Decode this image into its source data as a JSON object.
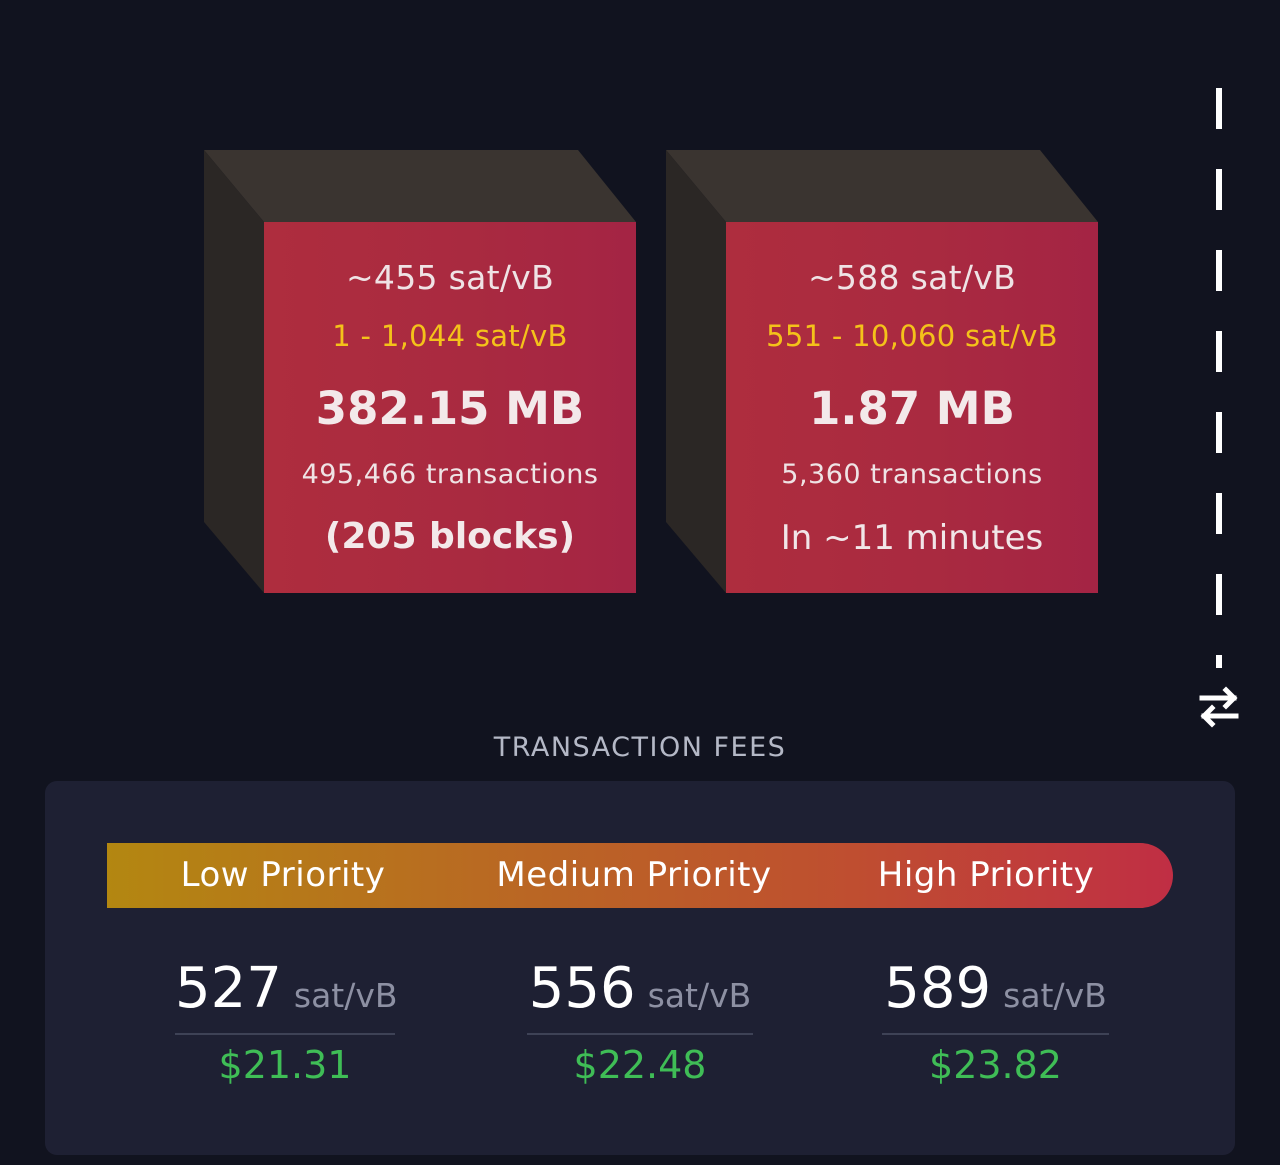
{
  "blocks": [
    {
      "median_fee": "~455 sat/vB",
      "fee_range": "1 - 1,044 sat/vB",
      "size": "382.15 MB",
      "tx_count": "495,466 transactions",
      "footer": "(205 blocks)"
    },
    {
      "median_fee": "~588 sat/vB",
      "fee_range": "551 - 10,060 sat/vB",
      "size": "1.87 MB",
      "tx_count": "5,360 transactions",
      "footer": "In ~11 minutes"
    }
  ],
  "switch_icon": "arrows-left-right-icon",
  "fees": {
    "title": "TRANSACTION FEES",
    "priorities": [
      {
        "label": "Low Priority",
        "rate": "527",
        "unit": "sat/vB",
        "usd": "$21.31"
      },
      {
        "label": "Medium Priority",
        "rate": "556",
        "unit": "sat/vB",
        "usd": "$22.48"
      },
      {
        "label": "High Priority",
        "rate": "589",
        "unit": "sat/vB",
        "usd": "$23.82"
      }
    ]
  },
  "colors": {
    "background": "#11131f",
    "card": "#1e2033",
    "block_face": "#ae2d3e",
    "fee_range": "#f4c21a",
    "usd": "#3fbd56"
  }
}
